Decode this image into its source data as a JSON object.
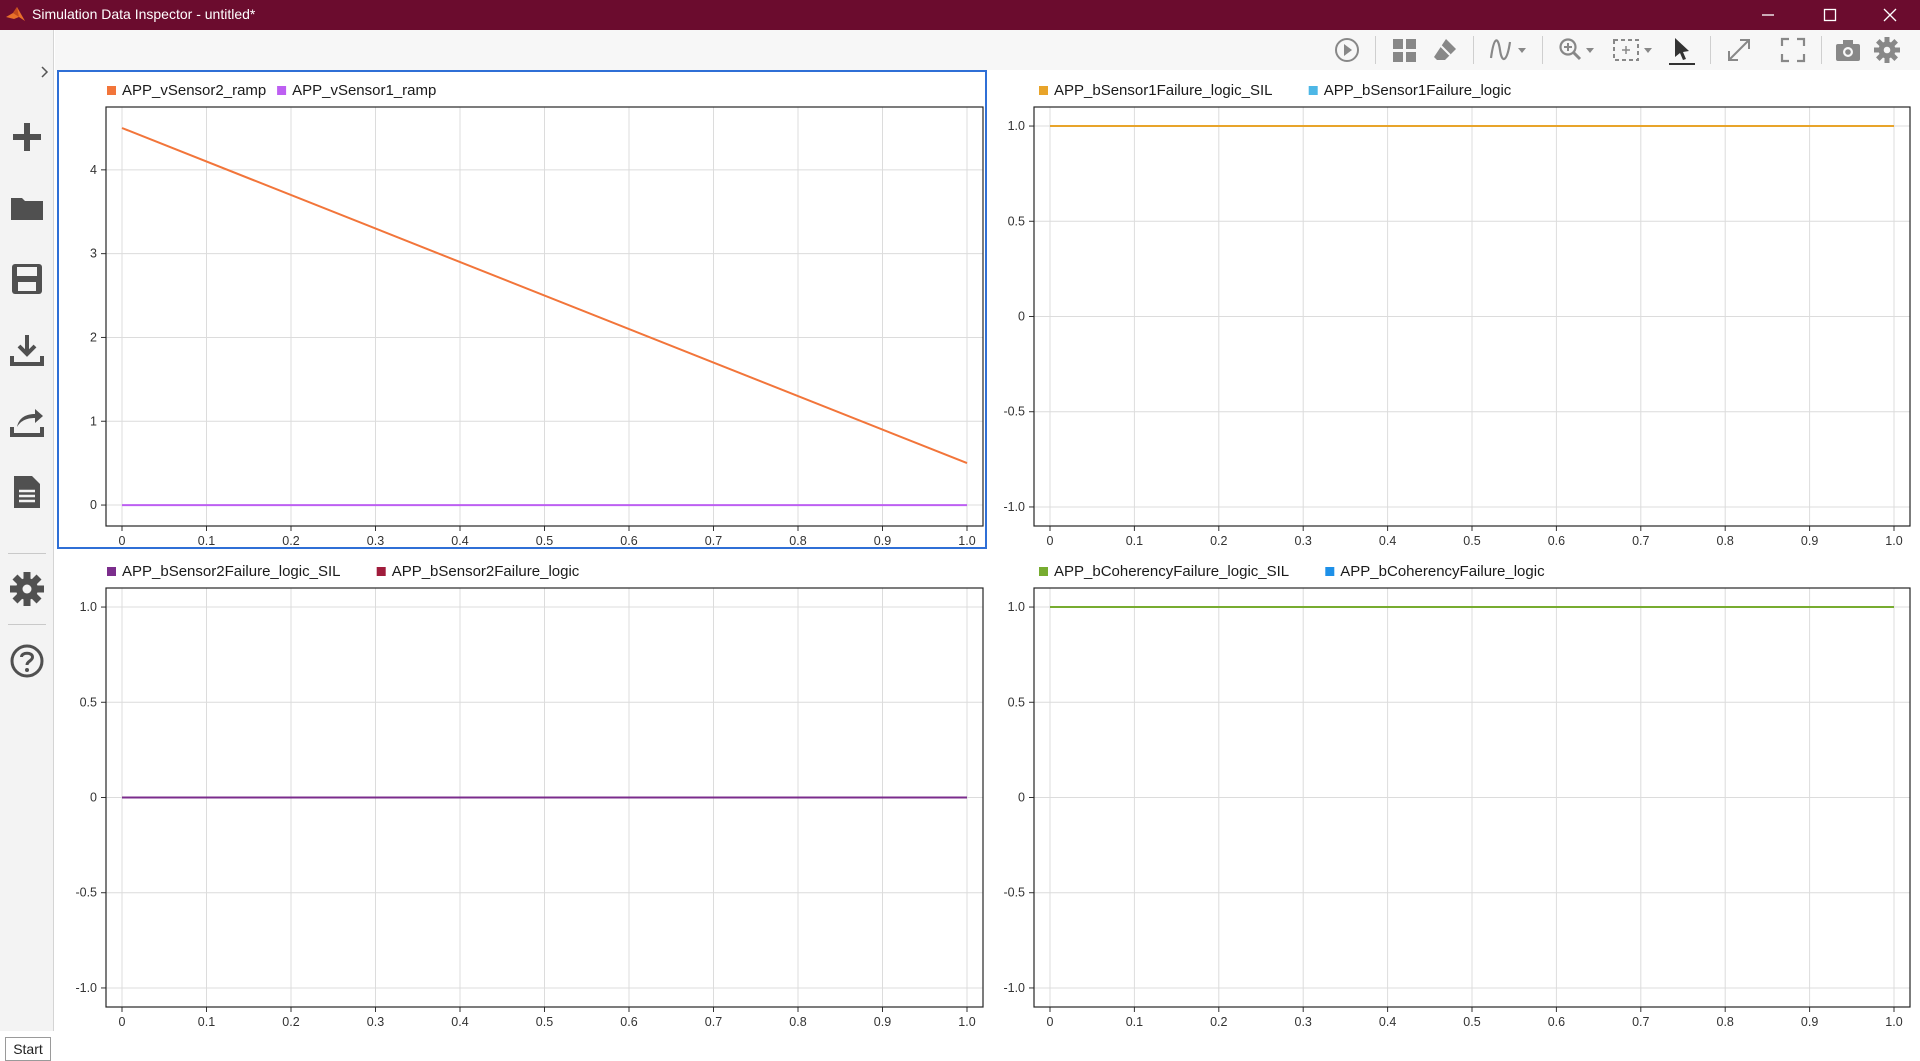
{
  "window": {
    "title": "Simulation Data Inspector - untitled*"
  },
  "sidebar": {
    "items": [
      {
        "icon": "plus-icon",
        "name": "new"
      },
      {
        "icon": "folder-icon",
        "name": "open"
      },
      {
        "icon": "save-icon",
        "name": "save"
      },
      {
        "icon": "import-icon",
        "name": "import"
      },
      {
        "icon": "share-icon",
        "name": "export"
      },
      {
        "icon": "report-icon",
        "name": "report"
      },
      {
        "icon": "gear-icon",
        "name": "preferences"
      },
      {
        "icon": "help-icon",
        "name": "help"
      }
    ],
    "start_label": "Start"
  },
  "toolbar": {
    "buttons": [
      "play-icon",
      "layout-grid-icon",
      "eraser-icon",
      "signal-style-icon",
      "zoom-icon",
      "fit-to-view-icon",
      "cursor-icon",
      "expand-icon",
      "fullscreen-icon",
      "camera-icon",
      "gear-icon"
    ]
  },
  "colors": {
    "titlebar": "#6b0c2e",
    "selection": "#2f6fd6",
    "grid": "#dcdcdc"
  },
  "plots": [
    {
      "id": "plot-1",
      "legend": [
        {
          "name": "APP_vSensor2_ramp",
          "color": "#f2753a"
        },
        {
          "name": "APP_vSensor1_ramp",
          "color": "#bd5ff2"
        }
      ],
      "chart_data": {
        "type": "line",
        "x_ticks": [
          "0",
          "0.1",
          "0.2",
          "0.3",
          "0.4",
          "0.5",
          "0.6",
          "0.7",
          "0.8",
          "0.9",
          "1.0"
        ],
        "y_ticks": [
          "0",
          "1",
          "2",
          "3",
          "4"
        ],
        "y_tick_values": [
          0,
          1,
          2,
          3,
          4
        ],
        "xlim": [
          0,
          1
        ],
        "ylim": [
          -0.25,
          4.75
        ],
        "grid": true,
        "series": [
          {
            "name": "APP_vSensor2_ramp",
            "x": [
              0,
              1
            ],
            "y": [
              4.5,
              0.5
            ]
          },
          {
            "name": "APP_vSensor1_ramp",
            "x": [
              0,
              1
            ],
            "y": [
              0,
              0
            ]
          }
        ]
      }
    },
    {
      "id": "plot-2",
      "legend": [
        {
          "name": "APP_bSensor1Failure_logic_SIL",
          "color": "#e8a42a"
        },
        {
          "name": "APP_bSensor1Failure_logic",
          "color": "#4db7e6"
        }
      ],
      "chart_data": {
        "type": "line",
        "x_ticks": [
          "0",
          "0.1",
          "0.2",
          "0.3",
          "0.4",
          "0.5",
          "0.6",
          "0.7",
          "0.8",
          "0.9",
          "1.0"
        ],
        "y_ticks": [
          "-1.0",
          "-0.5",
          "0",
          "0.5",
          "1.0"
        ],
        "y_tick_values": [
          -1,
          -0.5,
          0,
          0.5,
          1
        ],
        "xlim": [
          0,
          1
        ],
        "ylim": [
          -1.1,
          1.1
        ],
        "grid": true,
        "series": [
          {
            "name": "APP_bSensor1Failure_logic_SIL",
            "x": [
              0,
              1
            ],
            "y": [
              1,
              1
            ]
          },
          {
            "name": "APP_bSensor1Failure_logic",
            "x": [
              0,
              1
            ],
            "y": [
              1,
              1
            ]
          }
        ]
      }
    },
    {
      "id": "plot-3",
      "legend": [
        {
          "name": "APP_bSensor2Failure_logic_SIL",
          "color": "#7b2d8c"
        },
        {
          "name": "APP_bSensor2Failure_logic",
          "color": "#a01c3c"
        }
      ],
      "chart_data": {
        "type": "line",
        "x_ticks": [
          "0",
          "0.1",
          "0.2",
          "0.3",
          "0.4",
          "0.5",
          "0.6",
          "0.7",
          "0.8",
          "0.9",
          "1.0"
        ],
        "y_ticks": [
          "-1.0",
          "-0.5",
          "0",
          "0.5",
          "1.0"
        ],
        "y_tick_values": [
          -1,
          -0.5,
          0,
          0.5,
          1
        ],
        "xlim": [
          0,
          1
        ],
        "ylim": [
          -1.1,
          1.1
        ],
        "grid": true,
        "series": [
          {
            "name": "APP_bSensor2Failure_logic_SIL",
            "x": [
              0,
              1
            ],
            "y": [
              0,
              0
            ]
          },
          {
            "name": "APP_bSensor2Failure_logic",
            "x": [
              0,
              1
            ],
            "y": [
              0,
              0
            ]
          }
        ]
      }
    },
    {
      "id": "plot-4",
      "legend": [
        {
          "name": "APP_bCoherencyFailure_logic_SIL",
          "color": "#77ac30"
        },
        {
          "name": "APP_bCoherencyFailure_logic",
          "color": "#1e90e8"
        }
      ],
      "chart_data": {
        "type": "line",
        "x_ticks": [
          "0",
          "0.1",
          "0.2",
          "0.3",
          "0.4",
          "0.5",
          "0.6",
          "0.7",
          "0.8",
          "0.9",
          "1.0"
        ],
        "y_ticks": [
          "-1.0",
          "-0.5",
          "0",
          "0.5",
          "1.0"
        ],
        "y_tick_values": [
          -1,
          -0.5,
          0,
          0.5,
          1
        ],
        "xlim": [
          0,
          1
        ],
        "ylim": [
          -1.1,
          1.1
        ],
        "grid": true,
        "series": [
          {
            "name": "APP_bCoherencyFailure_logic_SIL",
            "x": [
              0,
              1
            ],
            "y": [
              1,
              1
            ]
          },
          {
            "name": "APP_bCoherencyFailure_logic",
            "x": [
              0,
              1
            ],
            "y": [
              1,
              1
            ]
          }
        ]
      }
    }
  ]
}
